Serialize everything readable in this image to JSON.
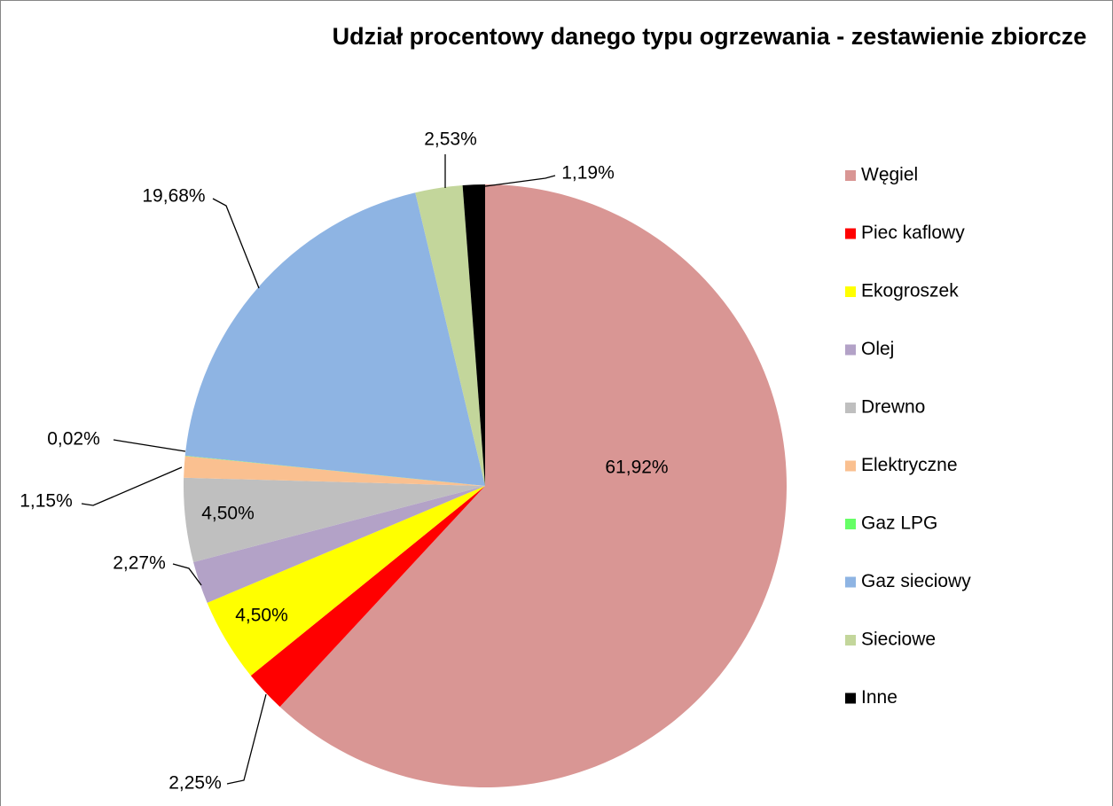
{
  "chart_data": {
    "type": "pie",
    "title": "Udział procentowy danego typu ogrzewania - zestawienie zbiorcze",
    "categories": [
      "Węgiel",
      "Piec kaflowy",
      "Ekogroszek",
      "Olej",
      "Drewno",
      "Elektryczne",
      "Gaz LPG",
      "Gaz sieciowy",
      "Sieciowe",
      "Inne"
    ],
    "values": [
      61.92,
      2.25,
      4.5,
      2.27,
      4.5,
      1.15,
      0.02,
      19.68,
      2.53,
      1.19
    ],
    "value_labels": [
      "61,92%",
      "2,25%",
      "4,50%",
      "2,27%",
      "4,50%",
      "1,15%",
      "0,02%",
      "19,68%",
      "2,53%",
      "1,19%"
    ],
    "colors": [
      "#d99694",
      "#ff0000",
      "#ffff00",
      "#b3a2c7",
      "#bfbfbf",
      "#fac090",
      "#66ff66",
      "#8eb4e3",
      "#c3d69b",
      "#000000"
    ],
    "legend": "right"
  }
}
